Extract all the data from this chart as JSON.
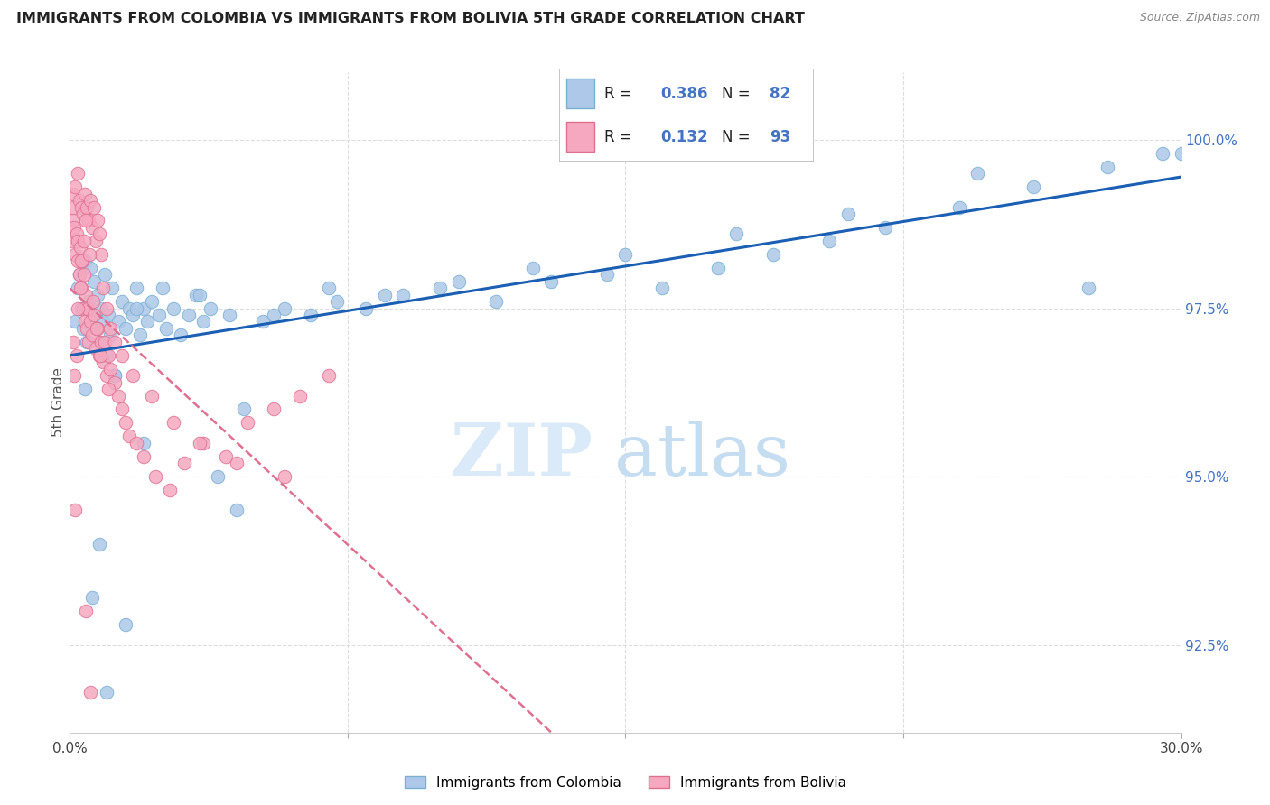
{
  "title": "IMMIGRANTS FROM COLOMBIA VS IMMIGRANTS FROM BOLIVIA 5TH GRADE CORRELATION CHART",
  "source": "Source: ZipAtlas.com",
  "ylabel": "5th Grade",
  "y_ticks": [
    92.5,
    95.0,
    97.5,
    100.0
  ],
  "y_tick_labels": [
    "92.5%",
    "95.0%",
    "97.5%",
    "100.0%"
  ],
  "x_min": 0.0,
  "x_max": 30.0,
  "y_min": 91.2,
  "y_max": 101.0,
  "colombia_color": "#adc8e8",
  "bolivia_color": "#f5a8c0",
  "colombia_edge": "#7aafd4",
  "bolivia_edge": "#e07090",
  "trend_colombia_color": "#1a5fb4",
  "trend_bolivia_color": "#e07090",
  "legend_label_colombia": "Immigrants from Colombia",
  "legend_label_bolivia": "Immigrants from Bolivia",
  "colombia_x": [
    0.15,
    0.2,
    0.25,
    0.3,
    0.35,
    0.4,
    0.45,
    0.5,
    0.55,
    0.6,
    0.65,
    0.7,
    0.75,
    0.8,
    0.85,
    0.9,
    0.95,
    1.0,
    1.05,
    1.1,
    1.15,
    1.2,
    1.3,
    1.4,
    1.5,
    1.6,
    1.7,
    1.8,
    1.9,
    2.0,
    2.1,
    2.2,
    2.4,
    2.6,
    2.8,
    3.0,
    3.2,
    3.4,
    3.6,
    3.8,
    4.0,
    4.3,
    4.7,
    5.2,
    5.8,
    6.5,
    7.2,
    8.0,
    9.0,
    10.0,
    11.5,
    13.0,
    14.5,
    16.0,
    17.5,
    19.0,
    20.5,
    22.0,
    24.0,
    26.0,
    28.0,
    30.0,
    0.4,
    0.8,
    1.2,
    1.8,
    2.5,
    3.5,
    4.5,
    5.5,
    7.0,
    8.5,
    10.5,
    12.5,
    15.0,
    18.0,
    21.0,
    24.5,
    27.5,
    29.5,
    0.6,
    1.0,
    1.5,
    2.0
  ],
  "colombia_y": [
    97.3,
    97.8,
    98.0,
    97.5,
    97.2,
    98.2,
    97.0,
    97.6,
    98.1,
    97.4,
    97.9,
    97.2,
    97.7,
    97.0,
    97.5,
    97.3,
    98.0,
    96.8,
    97.4,
    97.1,
    97.8,
    96.5,
    97.3,
    97.6,
    97.2,
    97.5,
    97.4,
    97.8,
    97.1,
    97.5,
    97.3,
    97.6,
    97.4,
    97.2,
    97.5,
    97.1,
    97.4,
    97.7,
    97.3,
    97.5,
    95.0,
    97.4,
    96.0,
    97.3,
    97.5,
    97.4,
    97.6,
    97.5,
    97.7,
    97.8,
    97.6,
    97.9,
    98.0,
    97.8,
    98.1,
    98.3,
    98.5,
    98.7,
    99.0,
    99.3,
    99.6,
    99.8,
    96.3,
    94.0,
    96.5,
    97.5,
    97.8,
    97.7,
    94.5,
    97.4,
    97.8,
    97.7,
    97.9,
    98.1,
    98.3,
    98.6,
    98.9,
    99.5,
    97.8,
    99.8,
    93.2,
    91.8,
    92.8,
    95.5
  ],
  "bolivia_x": [
    0.05,
    0.08,
    0.1,
    0.12,
    0.15,
    0.18,
    0.2,
    0.22,
    0.25,
    0.28,
    0.3,
    0.33,
    0.35,
    0.38,
    0.4,
    0.43,
    0.45,
    0.48,
    0.5,
    0.55,
    0.6,
    0.65,
    0.7,
    0.75,
    0.8,
    0.85,
    0.9,
    0.95,
    1.0,
    1.05,
    1.1,
    1.2,
    1.3,
    1.4,
    1.5,
    1.6,
    1.8,
    2.0,
    2.3,
    2.7,
    3.1,
    3.6,
    4.2,
    4.8,
    5.5,
    6.2,
    7.0,
    0.1,
    0.15,
    0.2,
    0.25,
    0.3,
    0.35,
    0.4,
    0.45,
    0.5,
    0.55,
    0.6,
    0.65,
    0.7,
    0.75,
    0.8,
    0.85,
    0.9,
    1.0,
    1.1,
    1.2,
    1.4,
    1.7,
    2.2,
    2.8,
    3.5,
    4.5,
    5.8,
    0.08,
    0.12,
    0.18,
    0.22,
    0.28,
    0.32,
    0.38,
    0.42,
    0.52,
    0.62,
    0.72,
    0.82,
    1.05,
    0.15,
    0.42,
    0.55
  ],
  "bolivia_y": [
    98.5,
    98.8,
    99.0,
    98.7,
    98.3,
    98.6,
    98.2,
    98.5,
    98.0,
    98.4,
    97.8,
    98.2,
    97.5,
    98.0,
    97.3,
    97.7,
    97.2,
    97.5,
    97.0,
    97.3,
    97.1,
    97.4,
    96.9,
    97.2,
    96.8,
    97.0,
    96.7,
    97.0,
    96.5,
    96.8,
    96.6,
    96.4,
    96.2,
    96.0,
    95.8,
    95.6,
    95.5,
    95.3,
    95.0,
    94.8,
    95.2,
    95.5,
    95.3,
    95.8,
    96.0,
    96.2,
    96.5,
    99.2,
    99.3,
    99.5,
    99.1,
    99.0,
    98.9,
    99.2,
    99.0,
    98.8,
    99.1,
    98.7,
    99.0,
    98.5,
    98.8,
    98.6,
    98.3,
    97.8,
    97.5,
    97.2,
    97.0,
    96.8,
    96.5,
    96.2,
    95.8,
    95.5,
    95.2,
    95.0,
    97.0,
    96.5,
    96.8,
    97.5,
    97.8,
    98.2,
    98.5,
    98.8,
    98.3,
    97.6,
    97.2,
    96.8,
    96.3,
    94.5,
    93.0,
    91.8
  ]
}
